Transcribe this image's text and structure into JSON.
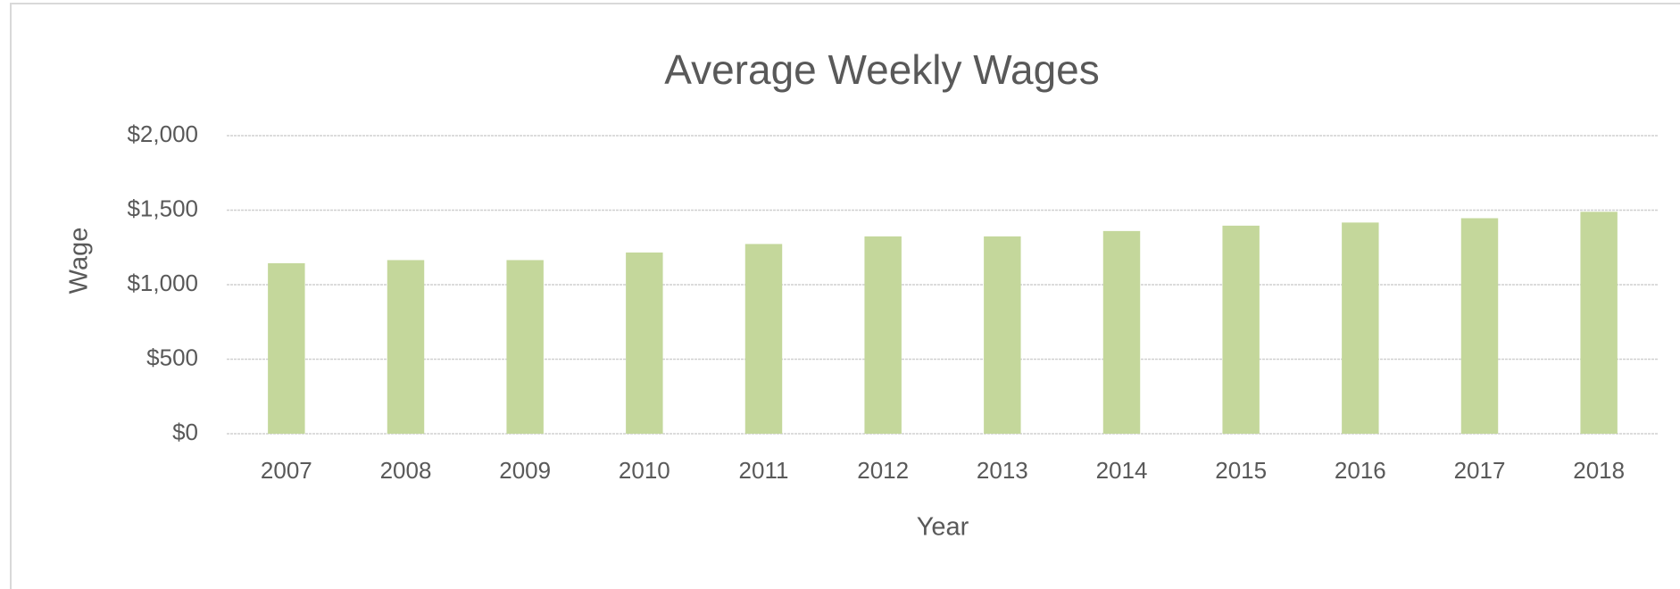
{
  "chart_data": {
    "type": "bar",
    "title": "Average Weekly Wages",
    "x_label": "Year",
    "y_label": "Wage",
    "categories": [
      "2007",
      "2008",
      "2009",
      "2010",
      "2011",
      "2012",
      "2013",
      "2014",
      "2015",
      "2016",
      "2017",
      "2018"
    ],
    "values": [
      1144,
      1165,
      1165,
      1216,
      1273,
      1324,
      1324,
      1360,
      1396,
      1417,
      1446,
      1489
    ],
    "color": "#c4d79b",
    "ylim": [
      0,
      2000
    ],
    "yticks": [
      {
        "value": 0,
        "label": "$0"
      },
      {
        "value": 500,
        "label": "$500"
      },
      {
        "value": 1000,
        "label": "$1,000"
      },
      {
        "value": 1500,
        "label": "$1,500"
      },
      {
        "value": 2000,
        "label": "$2,000"
      }
    ],
    "grid": true
  }
}
